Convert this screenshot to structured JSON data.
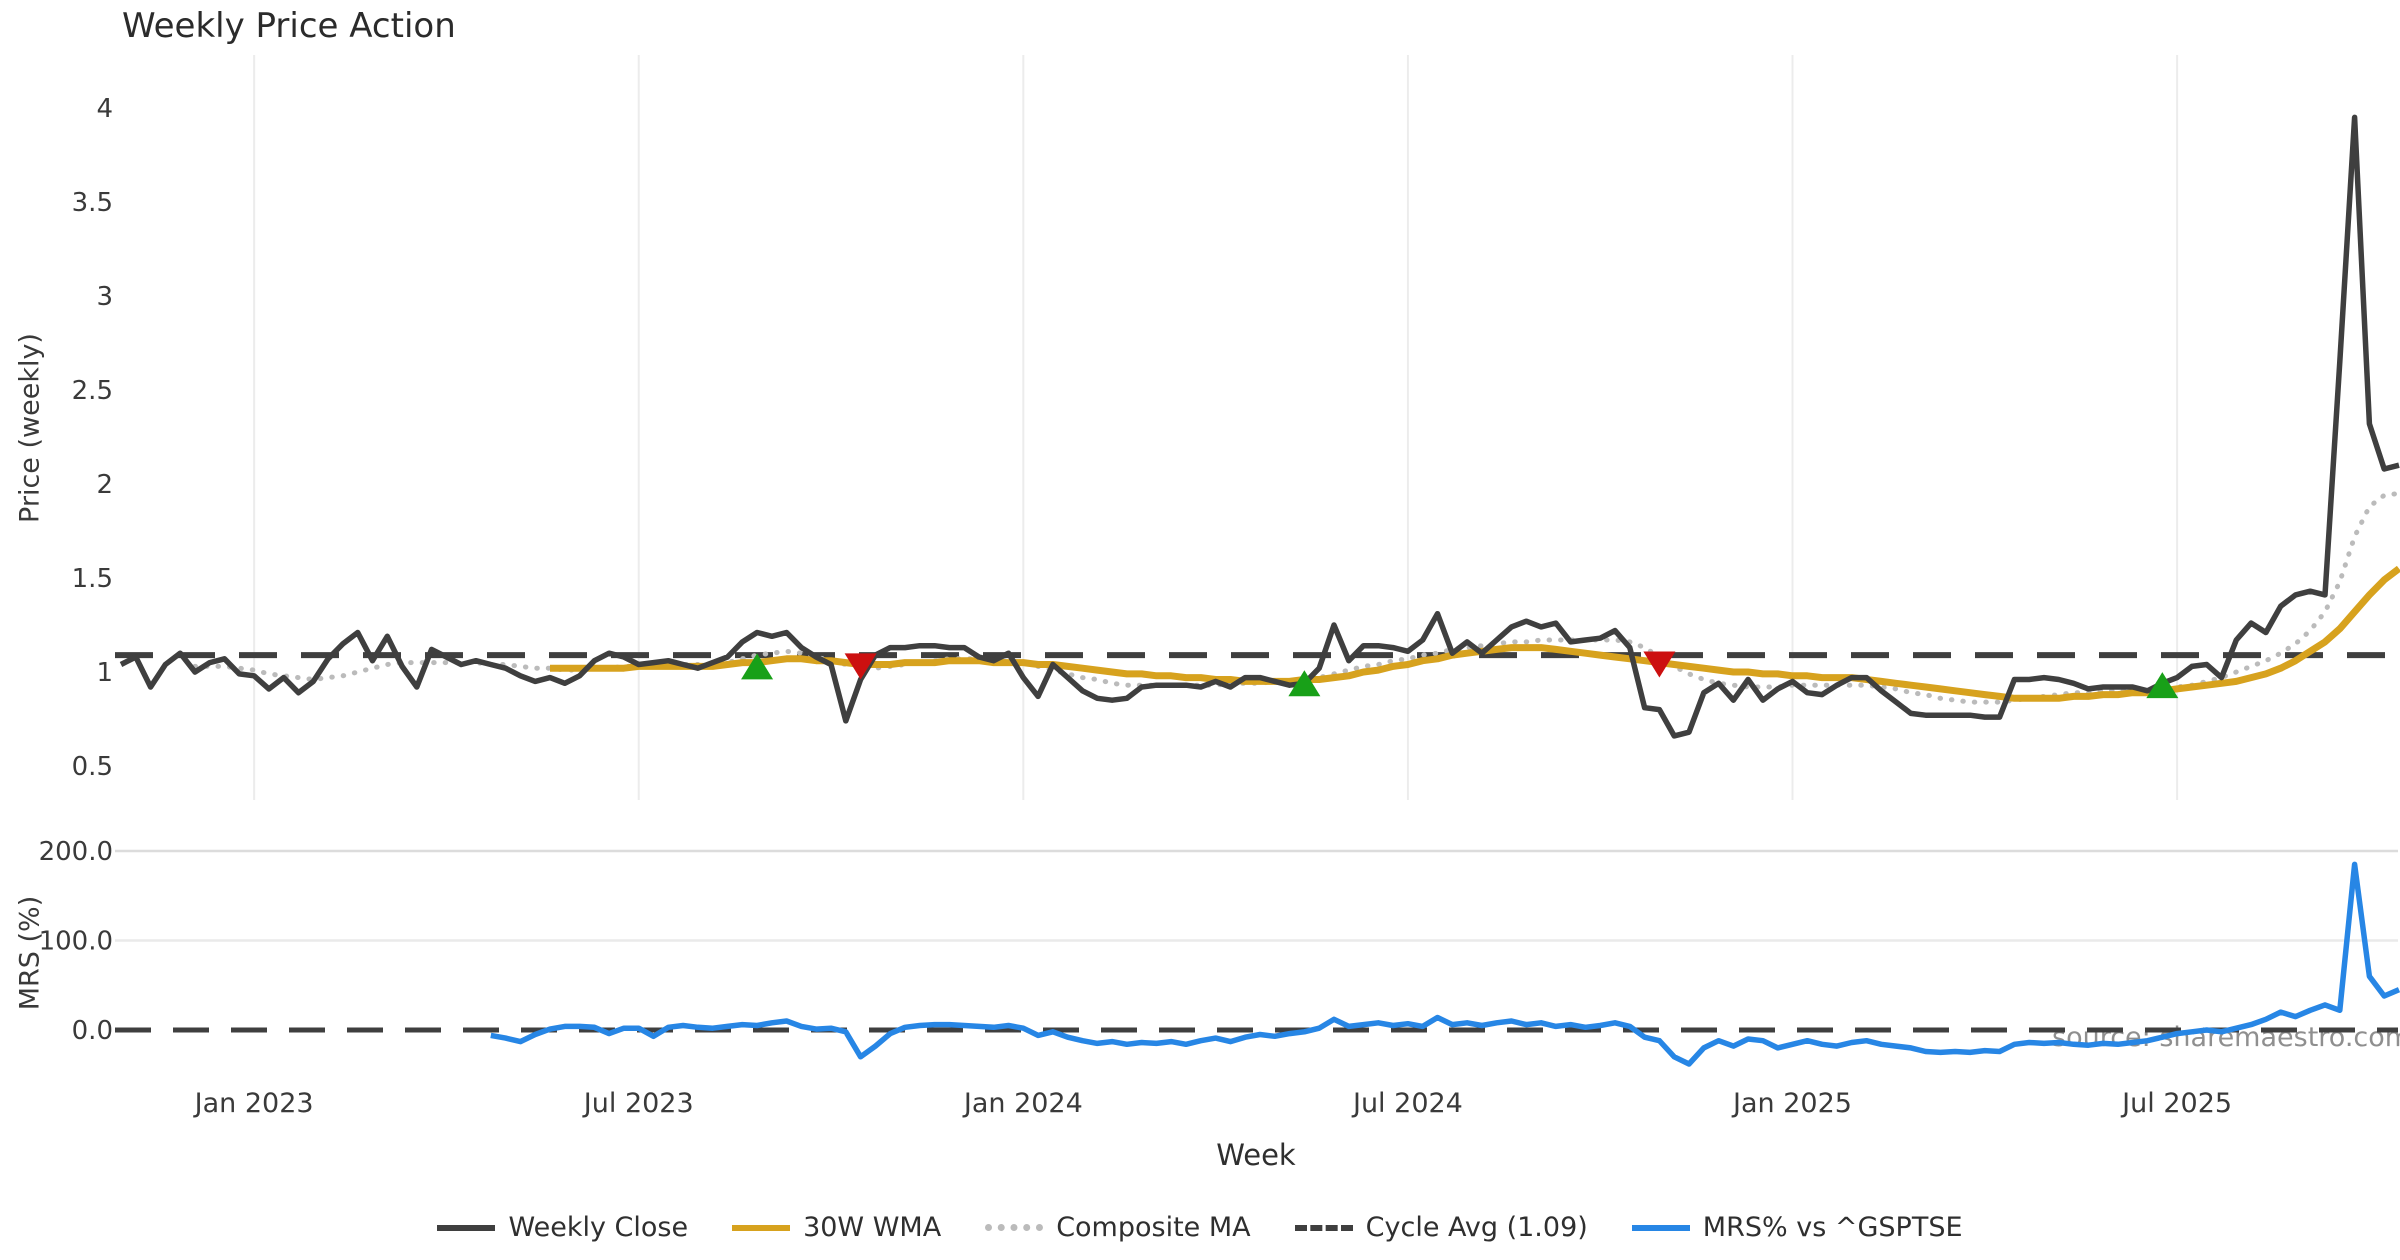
{
  "chart_data": {
    "type": "line",
    "title": "Weekly Price Action",
    "xlabel": "Week",
    "watermark": "source: sharemaestro.com",
    "total_weeks": 154,
    "xticks": [
      {
        "week": 9,
        "label": "Jan 2023"
      },
      {
        "week": 35,
        "label": "Jul 2023"
      },
      {
        "week": 61,
        "label": "Jan 2024"
      },
      {
        "week": 87,
        "label": "Jul 2024"
      },
      {
        "week": 113,
        "label": "Jan 2025"
      },
      {
        "week": 139,
        "label": "Jul 2025"
      }
    ],
    "colors": {
      "weekly_close": "#3f3f3f",
      "wma_30w": "#d7a21e",
      "composite_ma": "#bbbbbb",
      "cycle_avg": "#3f3f3f",
      "mrs": "#2786e5",
      "buy_marker": "#18a018",
      "sell_marker": "#cc1010",
      "gridline": "#ececec",
      "mrs_gridline_200": "#dcdcdc",
      "mrs_gridline_100": "#eaeaea",
      "tick_text": "#3a3a3a"
    },
    "price_panel": {
      "ylabel": "Price (weekly)",
      "ylim": [
        0.32,
        4.28
      ],
      "yticks": [
        {
          "value": 0.5,
          "label": "0.5"
        },
        {
          "value": 1,
          "label": "1"
        },
        {
          "value": 1.5,
          "label": "1.5"
        },
        {
          "value": 2,
          "label": "2"
        },
        {
          "value": 2.5,
          "label": "2.5"
        },
        {
          "value": 3,
          "label": "3"
        },
        {
          "value": 3.5,
          "label": "3.5"
        },
        {
          "value": 4,
          "label": "4"
        }
      ],
      "cycle_avg_value": 1.09
    },
    "mrs_panel": {
      "ylabel": "MRS (%)",
      "ylim": [
        -45,
        210
      ],
      "yticks": [
        {
          "value": 0,
          "label": "0.0"
        },
        {
          "value": 100,
          "label": "100.0"
        },
        {
          "value": 200,
          "label": "200.0"
        }
      ],
      "zero_line": 0
    },
    "series": {
      "weekly_close": {
        "name": "Weekly Close",
        "start_week": 0,
        "values": [
          1.04,
          1.08,
          0.92,
          1.04,
          1.1,
          1.0,
          1.05,
          1.07,
          0.99,
          0.98,
          0.91,
          0.97,
          0.89,
          0.95,
          1.07,
          1.15,
          1.21,
          1.06,
          1.19,
          1.03,
          0.92,
          1.12,
          1.08,
          1.04,
          1.06,
          1.04,
          1.02,
          0.98,
          0.95,
          0.97,
          0.94,
          0.98,
          1.06,
          1.1,
          1.08,
          1.04,
          1.05,
          1.06,
          1.04,
          1.02,
          1.05,
          1.08,
          1.16,
          1.21,
          1.19,
          1.21,
          1.13,
          1.08,
          1.04,
          0.74,
          0.96,
          1.09,
          1.13,
          1.13,
          1.14,
          1.14,
          1.13,
          1.13,
          1.08,
          1.06,
          1.1,
          0.97,
          0.87,
          1.04,
          0.97,
          0.9,
          0.86,
          0.85,
          0.86,
          0.92,
          0.93,
          0.93,
          0.93,
          0.92,
          0.95,
          0.92,
          0.97,
          0.97,
          0.95,
          0.93,
          0.94,
          1.02,
          1.25,
          1.06,
          1.14,
          1.14,
          1.13,
          1.11,
          1.17,
          1.31,
          1.1,
          1.16,
          1.1,
          1.17,
          1.24,
          1.27,
          1.24,
          1.26,
          1.16,
          1.17,
          1.18,
          1.22,
          1.13,
          0.81,
          0.8,
          0.66,
          0.68,
          0.89,
          0.94,
          0.85,
          0.96,
          0.85,
          0.91,
          0.95,
          0.89,
          0.88,
          0.93,
          0.97,
          0.97,
          0.9,
          0.84,
          0.78,
          0.77,
          0.77,
          0.77,
          0.77,
          0.76,
          0.76,
          0.96,
          0.96,
          0.97,
          0.96,
          0.94,
          0.91,
          0.92,
          0.92,
          0.92,
          0.9,
          0.94,
          0.97,
          1.03,
          1.04,
          0.97,
          1.17,
          1.26,
          1.21,
          1.35,
          1.41,
          1.43,
          1.41,
          2.65,
          3.95,
          2.32,
          2.08,
          2.1
        ]
      },
      "wma_30w": {
        "name": "30W WMA",
        "start_week": 29,
        "values": [
          1.02,
          1.02,
          1.02,
          1.02,
          1.02,
          1.02,
          1.03,
          1.03,
          1.03,
          1.03,
          1.03,
          1.03,
          1.04,
          1.05,
          1.05,
          1.06,
          1.07,
          1.07,
          1.06,
          1.06,
          1.05,
          1.04,
          1.04,
          1.04,
          1.05,
          1.05,
          1.05,
          1.06,
          1.06,
          1.06,
          1.05,
          1.05,
          1.05,
          1.04,
          1.04,
          1.03,
          1.02,
          1.01,
          1.0,
          0.99,
          0.99,
          0.98,
          0.98,
          0.97,
          0.97,
          0.96,
          0.96,
          0.95,
          0.95,
          0.95,
          0.95,
          0.96,
          0.96,
          0.97,
          0.98,
          1.0,
          1.01,
          1.03,
          1.04,
          1.06,
          1.07,
          1.09,
          1.1,
          1.11,
          1.12,
          1.13,
          1.13,
          1.13,
          1.12,
          1.11,
          1.1,
          1.09,
          1.08,
          1.07,
          1.06,
          1.05,
          1.04,
          1.03,
          1.02,
          1.01,
          1.0,
          1.0,
          0.99,
          0.99,
          0.98,
          0.98,
          0.97,
          0.97,
          0.97,
          0.96,
          0.95,
          0.94,
          0.93,
          0.92,
          0.91,
          0.9,
          0.89,
          0.88,
          0.87,
          0.86,
          0.86,
          0.86,
          0.86,
          0.87,
          0.87,
          0.88,
          0.88,
          0.89,
          0.89,
          0.9,
          0.91,
          0.92,
          0.93,
          0.94,
          0.95,
          0.97,
          0.99,
          1.02,
          1.06,
          1.11,
          1.16,
          1.23,
          1.32,
          1.41,
          1.49,
          1.55
        ]
      },
      "composite_ma": {
        "name": "Composite MA",
        "start_week": 5,
        "values": [
          1.03,
          1.03,
          1.03,
          1.02,
          1.01,
          0.99,
          0.98,
          0.97,
          0.96,
          0.97,
          0.98,
          1.0,
          1.02,
          1.04,
          1.05,
          1.05,
          1.05,
          1.05,
          1.05,
          1.05,
          1.04,
          1.04,
          1.03,
          1.02,
          1.02,
          1.01,
          1.01,
          1.02,
          1.02,
          1.03,
          1.03,
          1.03,
          1.03,
          1.04,
          1.04,
          1.04,
          1.05,
          1.07,
          1.09,
          1.1,
          1.11,
          1.1,
          1.08,
          1.06,
          1.04,
          1.03,
          1.02,
          1.03,
          1.04,
          1.05,
          1.06,
          1.07,
          1.07,
          1.07,
          1.06,
          1.06,
          1.05,
          1.03,
          1.01,
          0.99,
          0.97,
          0.96,
          0.94,
          0.93,
          0.93,
          0.93,
          0.93,
          0.93,
          0.93,
          0.93,
          0.94,
          0.94,
          0.94,
          0.95,
          0.95,
          0.96,
          0.97,
          0.99,
          1.01,
          1.03,
          1.04,
          1.06,
          1.07,
          1.09,
          1.1,
          1.12,
          1.13,
          1.14,
          1.15,
          1.16,
          1.16,
          1.17,
          1.17,
          1.17,
          1.17,
          1.17,
          1.17,
          1.16,
          1.13,
          1.08,
          1.03,
          0.99,
          0.96,
          0.94,
          0.93,
          0.92,
          0.92,
          0.92,
          0.93,
          0.93,
          0.93,
          0.93,
          0.93,
          0.93,
          0.92,
          0.91,
          0.89,
          0.88,
          0.86,
          0.85,
          0.84,
          0.84,
          0.84,
          0.85,
          0.86,
          0.87,
          0.88,
          0.89,
          0.89,
          0.9,
          0.9,
          0.9,
          0.9,
          0.91,
          0.92,
          0.93,
          0.95,
          0.97,
          1.0,
          1.03,
          1.06,
          1.1,
          1.15,
          1.22,
          1.32,
          1.48,
          1.72,
          1.88,
          1.94,
          1.95
        ]
      },
      "mrs": {
        "name": "MRS% vs ^GSPTSE",
        "start_week": 25,
        "values": [
          -6,
          -9,
          -13,
          -5,
          1,
          4,
          4,
          3,
          -4,
          2,
          2,
          -7,
          3,
          5,
          3,
          2,
          4,
          6,
          5,
          8,
          10,
          4,
          1,
          2,
          -2,
          -30,
          -18,
          -4,
          3,
          5,
          6,
          6,
          5,
          4,
          3,
          5,
          2,
          -6,
          -2,
          -8,
          -12,
          -15,
          -13,
          -16,
          -14,
          -15,
          -13,
          -16,
          -12,
          -9,
          -13,
          -8,
          -5,
          -7,
          -4,
          -2,
          2,
          12,
          4,
          6,
          8,
          5,
          7,
          4,
          14,
          6,
          8,
          5,
          8,
          10,
          6,
          8,
          4,
          6,
          3,
          5,
          8,
          4,
          -8,
          -12,
          -30,
          -38,
          -20,
          -12,
          -18,
          -10,
          -12,
          -20,
          -16,
          -12,
          -16,
          -18,
          -14,
          -12,
          -16,
          -18,
          -20,
          -24,
          -25,
          -24,
          -25,
          -23,
          -24,
          -16,
          -14,
          -15,
          -14,
          -16,
          -17,
          -15,
          -16,
          -14,
          -12,
          -8,
          -4,
          -2,
          0,
          -2,
          2,
          6,
          12,
          20,
          15,
          22,
          28,
          22,
          185,
          60,
          38,
          45
        ]
      }
    },
    "signals": {
      "buy": [
        {
          "week": 43,
          "price": 1.03
        },
        {
          "week": 80,
          "price": 0.94
        },
        {
          "week": 138,
          "price": 0.93
        }
      ],
      "sell": [
        {
          "week": 50,
          "price": 1.03
        },
        {
          "week": 104,
          "price": 1.04
        }
      ]
    },
    "legend": [
      {
        "label": "Weekly Close",
        "color": "#3f3f3f",
        "style": "solid"
      },
      {
        "label": "30W WMA",
        "color": "#d7a21e",
        "style": "solid"
      },
      {
        "label": "Composite MA",
        "color": "#bbbbbb",
        "style": "dotted"
      },
      {
        "label": "Cycle Avg (1.09)",
        "color": "#3f3f3f",
        "style": "dashed"
      },
      {
        "label": "MRS% vs ^GSPTSE",
        "color": "#2786e5",
        "style": "solid"
      }
    ]
  }
}
